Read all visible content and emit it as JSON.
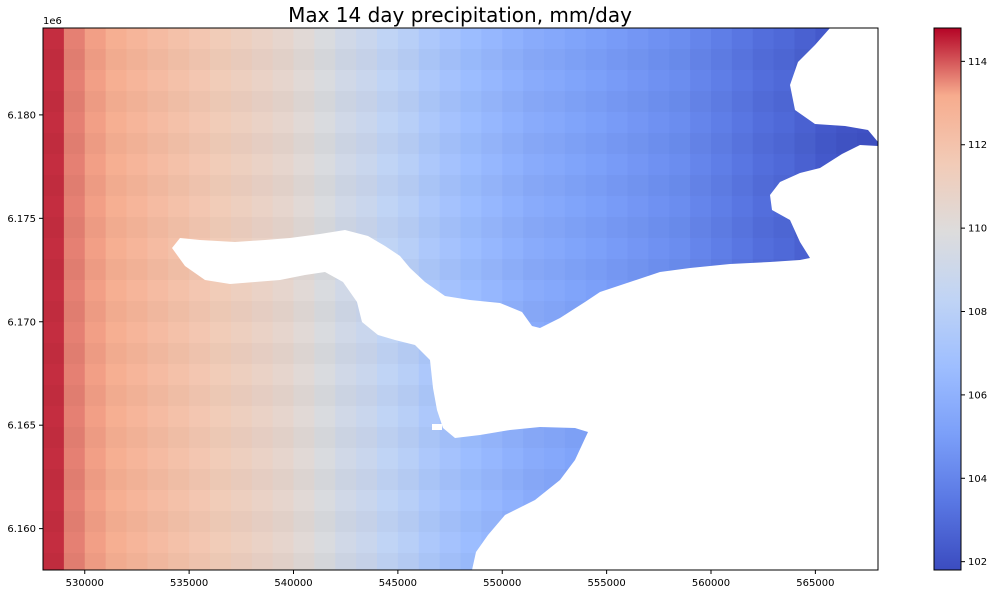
{
  "chart_data": {
    "type": "heatmap",
    "title": "Max 14 day precipitation, mm/day",
    "xlabel": "",
    "ylabel": "",
    "y_offset_label": "1e6",
    "x_ticks": [
      530000,
      535000,
      540000,
      545000,
      550000,
      555000,
      560000,
      565000
    ],
    "x_tick_labels": [
      "530000",
      "535000",
      "540000",
      "545000",
      "550000",
      "555000",
      "560000",
      "565000"
    ],
    "y_ticks": [
      6.16,
      6.165,
      6.17,
      6.175,
      6.18
    ],
    "y_tick_labels": [
      "6.160",
      "6.165",
      "6.170",
      "6.175",
      "6.180"
    ],
    "xlim": [
      528000,
      568000
    ],
    "ylim": [
      6.158,
      6.1842
    ],
    "colorbar": {
      "cmap": "coolwarm",
      "vmin": 101.8,
      "vmax": 114.8,
      "ticks": [
        102,
        104,
        106,
        108,
        110,
        112,
        114
      ],
      "tick_labels": [
        "102",
        "104",
        "106",
        "108",
        "110",
        "112",
        "114"
      ]
    },
    "columns_x": [
      528500,
      529500,
      530500,
      531500,
      532500,
      533500,
      534500,
      535500,
      536500,
      537500,
      538500,
      539500,
      540500,
      541500,
      542500,
      543500,
      544500,
      545500,
      546500,
      547500,
      548500,
      549500,
      550500,
      551500,
      552500,
      553500,
      554500,
      555500,
      556500,
      557500,
      558500,
      559500,
      560500,
      561500,
      562500,
      563500,
      564500,
      565500,
      566500,
      567500
    ],
    "column_values": [
      114.4,
      113.6,
      113.3,
      113.0,
      112.7,
      112.4,
      112.1,
      111.8,
      111.5,
      111.2,
      110.9,
      110.6,
      110.2,
      109.7,
      109.2,
      108.8,
      108.3,
      107.9,
      107.4,
      107.0,
      106.6,
      106.3,
      106.0,
      105.7,
      105.5,
      105.3,
      105.1,
      104.9,
      104.7,
      104.5,
      104.3,
      104.0,
      103.7,
      103.4,
      103.1,
      102.9,
      102.6,
      102.3,
      102.1,
      102.0
    ],
    "grid": false
  }
}
